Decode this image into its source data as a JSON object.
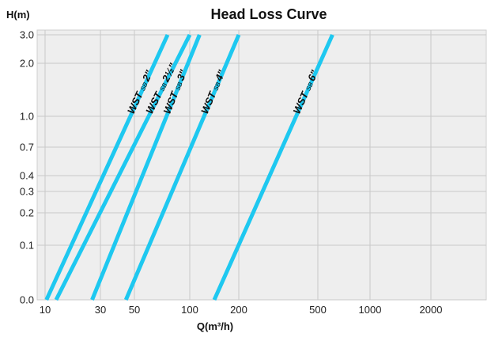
{
  "chart_data": {
    "type": "line",
    "title": "Head Loss Curve",
    "xlabel": "Q(m³/h)",
    "ylabel": "H(m)",
    "x_ticks": [
      {
        "label": "10",
        "value": 10
      },
      {
        "label": "30",
        "value": 30
      },
      {
        "label": "50",
        "value": 50
      },
      {
        "label": "100",
        "value": 100
      },
      {
        "label": "200",
        "value": 200
      },
      {
        "label": "500",
        "value": 500
      },
      {
        "label": "1000",
        "value": 1000
      },
      {
        "label": "2000",
        "value": 2000
      }
    ],
    "y_ticks": [
      {
        "label": "0.0",
        "value": 0.0
      },
      {
        "label": "0.1",
        "value": 0.1
      },
      {
        "label": "0.2",
        "value": 0.2
      },
      {
        "label": "0.3",
        "value": 0.3
      },
      {
        "label": "0.4",
        "value": 0.4
      },
      {
        "label": "0.7",
        "value": 0.7
      },
      {
        "label": "1.0",
        "value": 1.0
      },
      {
        "label": "2.0",
        "value": 2.0
      },
      {
        "label": "3.0",
        "value": 3.0
      }
    ],
    "grid": true,
    "line_color": "#1ec8f0",
    "series": [
      {
        "name": "WST",
        "size": "2\"",
        "sub": "SB",
        "points": [
          [
            10.5,
            0.0
          ],
          [
            80,
            3.0
          ]
        ]
      },
      {
        "name": "WST",
        "size": "2½\"",
        "sub": "SB",
        "points": [
          [
            14,
            0.0
          ],
          [
            100,
            3.0
          ]
        ]
      },
      {
        "name": "WST",
        "size": "3\"",
        "sub": "SB",
        "points": [
          [
            27,
            0.0
          ],
          [
            120,
            3.0
          ]
        ]
      },
      {
        "name": "WST",
        "size": "4\"",
        "sub": "SB",
        "points": [
          [
            45,
            0.0
          ],
          [
            200,
            3.0
          ]
        ]
      },
      {
        "name": "WST",
        "size": "6\"",
        "sub": "SB",
        "points": [
          [
            150,
            0.0
          ],
          [
            640,
            3.0
          ]
        ]
      }
    ]
  }
}
